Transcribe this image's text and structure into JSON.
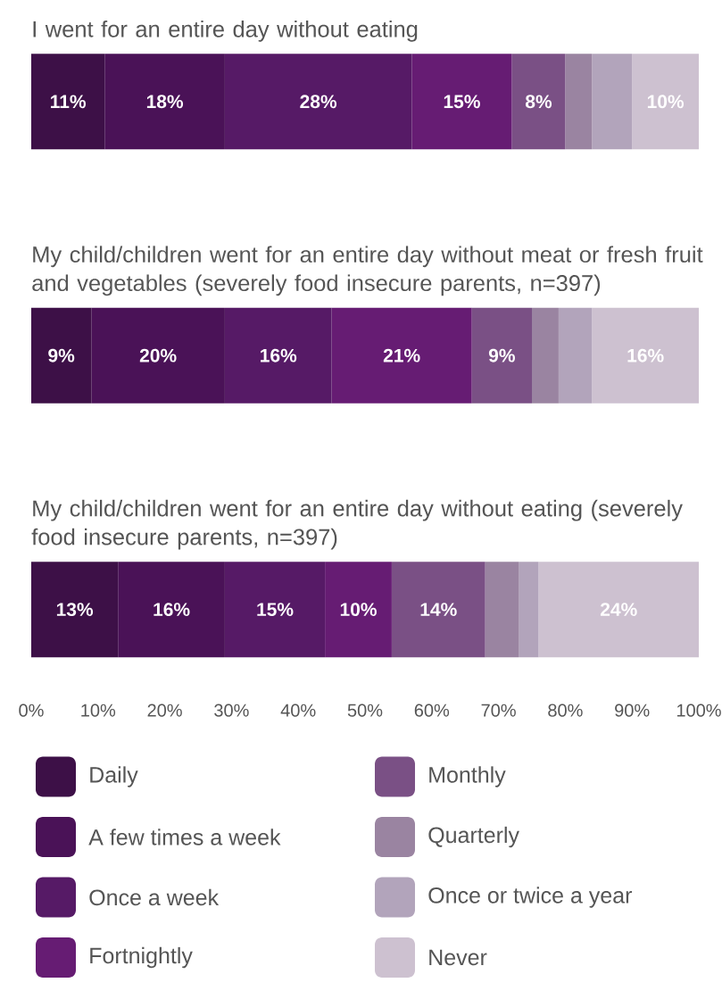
{
  "chart_data": {
    "type": "bar",
    "orientation": "horizontal",
    "stacked": true,
    "categories": [
      "I went for an entire day without eating",
      "My child/children went for an entire day without meat or fresh fruit and vegetables (severely food insecure parents, n=397)",
      "My child/children went for an entire day without eating (severely food insecure parents, n=397)"
    ],
    "series": [
      {
        "name": "Daily",
        "color": "#3d1047",
        "values": [
          11,
          9,
          13
        ],
        "value_labels": [
          "11%",
          "9%",
          "13%"
        ]
      },
      {
        "name": "A few times a week",
        "color": "#4a1257",
        "values": [
          18,
          20,
          16
        ],
        "value_labels": [
          "18%",
          "20%",
          "16%"
        ]
      },
      {
        "name": "Once a week",
        "color": "#561a66",
        "values": [
          28,
          16,
          15
        ],
        "value_labels": [
          "28%",
          "16%",
          "15%"
        ]
      },
      {
        "name": "Fortnightly",
        "color": "#661c73",
        "values": [
          15,
          21,
          10
        ],
        "value_labels": [
          "15%",
          "21%",
          "10%"
        ]
      },
      {
        "name": "Monthly",
        "color": "#7a5085",
        "values": [
          8,
          9,
          14
        ],
        "value_labels": [
          "8%",
          "9%",
          "14%"
        ]
      },
      {
        "name": "Quarterly",
        "color": "#9a84a1",
        "values": [
          4,
          4,
          5
        ],
        "value_labels": [
          null,
          null,
          null
        ]
      },
      {
        "name": "Once or twice a year",
        "color": "#b2a4bb",
        "values": [
          6,
          5,
          3
        ],
        "value_labels": [
          null,
          null,
          null
        ]
      },
      {
        "name": "Never",
        "color": "#cdc1d0",
        "values": [
          10,
          16,
          24
        ],
        "value_labels": [
          "10%",
          "16%",
          "24%"
        ]
      }
    ],
    "xlim": [
      0,
      100
    ],
    "xticks": [
      {
        "value": 0,
        "label": "0%"
      },
      {
        "value": 10,
        "label": "10%"
      },
      {
        "value": 20,
        "label": "20%"
      },
      {
        "value": 30,
        "label": "30%"
      },
      {
        "value": 40,
        "label": "40%"
      },
      {
        "value": 50,
        "label": "50%"
      },
      {
        "value": 60,
        "label": "60%"
      },
      {
        "value": 70,
        "label": "70%"
      },
      {
        "value": 80,
        "label": "80%"
      },
      {
        "value": 90,
        "label": "90%"
      },
      {
        "value": 100,
        "label": "100%"
      }
    ],
    "legend": "bottom"
  }
}
